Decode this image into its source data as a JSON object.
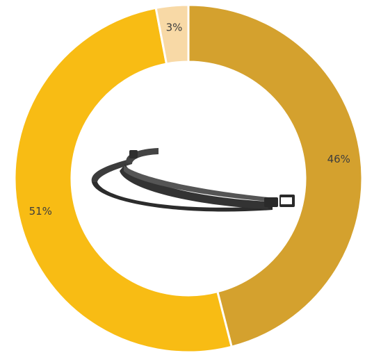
{
  "chart_data": {
    "type": "pie",
    "title": "",
    "donut": true,
    "slices": [
      {
        "label": "46%",
        "value": 46,
        "color": "#D4A12E"
      },
      {
        "label": "51%",
        "value": 51,
        "color": "#F8BC14"
      },
      {
        "label": "3%",
        "value": 3,
        "color": "#F8D9A6"
      }
    ],
    "center_image": "headgear-band-icon"
  }
}
